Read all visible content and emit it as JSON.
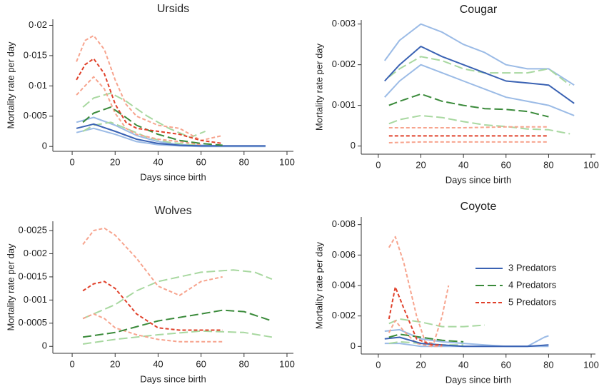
{
  "chart_data": [
    {
      "type": "line",
      "title": "Ursids",
      "x_label": "Days since birth",
      "y_label": "Mortality rate per day",
      "xlim": [
        -9,
        103
      ],
      "ylim": [
        -0.0008,
        0.021
      ],
      "xticks": [
        0,
        20,
        40,
        60,
        80,
        100
      ],
      "yticks": [
        0,
        {
          "value": 0.005,
          "label": "0·005"
        },
        {
          "value": 0.01,
          "label": "0·01"
        },
        {
          "value": 0.015,
          "label": "0·015"
        },
        {
          "value": 0.02,
          "label": "0·02"
        }
      ],
      "series": [
        {
          "color": "#9bbbe6",
          "dash": "solid",
          "x": [
            2,
            10,
            20,
            30,
            40,
            50,
            60,
            70,
            80,
            90
          ],
          "values": [
            0.004,
            0.0048,
            0.0035,
            0.0018,
            0.0008,
            0.0003,
            0.0002,
            0.0001,
            0.0001,
            0.0001
          ]
        },
        {
          "color": "#9bbbe6",
          "dash": "solid",
          "x": [
            2,
            10,
            20,
            30,
            40,
            50,
            60,
            70,
            80,
            90
          ],
          "values": [
            0.0023,
            0.003,
            0.002,
            0.0008,
            0.0003,
            0.0001,
            0,
            0,
            0,
            0
          ]
        },
        {
          "color": "#a8d8a0",
          "dash": "long",
          "x": [
            5,
            10,
            18,
            25,
            35,
            45,
            55,
            62
          ],
          "values": [
            0.0065,
            0.008,
            0.0088,
            0.0075,
            0.005,
            0.003,
            0.0015,
            0.0025
          ]
        },
        {
          "color": "#a8d8a0",
          "dash": "long",
          "x": [
            5,
            10,
            18,
            25,
            35,
            45,
            55,
            60
          ],
          "values": [
            0.0025,
            0.0035,
            0.004,
            0.003,
            0.0015,
            0.0007,
            0.0003,
            0.0002
          ]
        },
        {
          "color": "#f7a48e",
          "dash": "short",
          "x": [
            2,
            6,
            10,
            15,
            20,
            25,
            30,
            40,
            50,
            60,
            70
          ],
          "values": [
            0.014,
            0.0175,
            0.0183,
            0.016,
            0.011,
            0.007,
            0.005,
            0.0035,
            0.003,
            0.001,
            0.0018
          ]
        },
        {
          "color": "#f7a48e",
          "dash": "short",
          "x": [
            2,
            6,
            10,
            15,
            20,
            25,
            30,
            40,
            50,
            60
          ],
          "values": [
            0.0085,
            0.01,
            0.0115,
            0.0095,
            0.0055,
            0.003,
            0.002,
            0.0012,
            0.0008,
            0.0003
          ]
        },
        {
          "color": "#3a62b3",
          "dash": "solid",
          "x": [
            2,
            10,
            20,
            30,
            40,
            50,
            60,
            70,
            80,
            90
          ],
          "values": [
            0.003,
            0.0037,
            0.0025,
            0.0012,
            0.0005,
            0.0002,
            0.0001,
            0.0001,
            0.0001,
            0.0001
          ]
        },
        {
          "color": "#3a8a3a",
          "dash": "long",
          "x": [
            5,
            10,
            18,
            25,
            30,
            40,
            50,
            60,
            70
          ],
          "values": [
            0.004,
            0.0055,
            0.0065,
            0.0048,
            0.0035,
            0.002,
            0.001,
            0.0005,
            0.0002
          ]
        },
        {
          "color": "#e0402a",
          "dash": "short",
          "x": [
            2,
            6,
            10,
            15,
            20,
            25,
            30,
            40,
            50,
            60,
            70
          ],
          "values": [
            0.011,
            0.0135,
            0.0145,
            0.012,
            0.007,
            0.004,
            0.003,
            0.0025,
            0.002,
            0.001,
            0.0005
          ]
        }
      ]
    },
    {
      "type": "line",
      "title": "Cougar",
      "x_label": "Days since birth",
      "y_label": "Mortality rate per day",
      "xlim": [
        -8,
        102
      ],
      "ylim": [
        -0.0002,
        0.0031
      ],
      "xticks": [
        0,
        20,
        40,
        60,
        80,
        100
      ],
      "yticks": [
        0,
        {
          "value": 0.001,
          "label": "0·001"
        },
        {
          "value": 0.002,
          "label": "0·002"
        },
        {
          "value": 0.003,
          "label": "0·003"
        }
      ],
      "series": [
        {
          "color": "#9bbbe6",
          "dash": "solid",
          "x": [
            3,
            10,
            20,
            30,
            40,
            50,
            60,
            70,
            80,
            92
          ],
          "values": [
            0.0021,
            0.0026,
            0.003,
            0.0028,
            0.0025,
            0.0023,
            0.002,
            0.0019,
            0.0019,
            0.0015
          ]
        },
        {
          "color": "#9bbbe6",
          "dash": "solid",
          "x": [
            3,
            10,
            20,
            30,
            40,
            50,
            60,
            70,
            80,
            92
          ],
          "values": [
            0.0012,
            0.0016,
            0.002,
            0.0018,
            0.0016,
            0.0014,
            0.0012,
            0.0011,
            0.001,
            0.00075
          ]
        },
        {
          "color": "#a8d8a0",
          "dash": "long",
          "x": [
            5,
            10,
            20,
            30,
            40,
            50,
            60,
            70,
            80,
            90
          ],
          "values": [
            0.0017,
            0.0019,
            0.0022,
            0.0021,
            0.0019,
            0.0018,
            0.0018,
            0.0018,
            0.0019,
            0.0015
          ]
        },
        {
          "color": "#a8d8a0",
          "dash": "long",
          "x": [
            5,
            10,
            20,
            30,
            40,
            50,
            60,
            70,
            80,
            90
          ],
          "values": [
            0.00055,
            0.00065,
            0.00075,
            0.0007,
            0.0006,
            0.00052,
            0.00048,
            0.00042,
            0.0004,
            0.0003
          ]
        },
        {
          "color": "#f7a48e",
          "dash": "short",
          "x": [
            5,
            20,
            40,
            60,
            80
          ],
          "values": [
            0.00045,
            0.00045,
            0.00045,
            0.00047,
            0.00047
          ]
        },
        {
          "color": "#f7a48e",
          "dash": "short",
          "x": [
            5,
            20,
            40,
            60,
            80
          ],
          "values": [
            8e-05,
            0.0001,
            0.0001,
            0.0001,
            0.0001
          ]
        },
        {
          "color": "#3a62b3",
          "dash": "solid",
          "x": [
            3,
            10,
            20,
            30,
            40,
            50,
            60,
            70,
            80,
            92
          ],
          "values": [
            0.0016,
            0.002,
            0.00245,
            0.0022,
            0.002,
            0.0018,
            0.0016,
            0.00155,
            0.0015,
            0.00105
          ]
        },
        {
          "color": "#3a8a3a",
          "dash": "long",
          "x": [
            5,
            10,
            20,
            30,
            40,
            50,
            60,
            70,
            80
          ],
          "values": [
            0.001,
            0.0011,
            0.00128,
            0.0011,
            0.001,
            0.00092,
            0.0009,
            0.00085,
            0.00072
          ]
        },
        {
          "color": "#e0402a",
          "dash": "short",
          "x": [
            5,
            20,
            40,
            60,
            80
          ],
          "values": [
            0.00025,
            0.00025,
            0.00025,
            0.00025,
            0.00025
          ]
        }
      ]
    },
    {
      "type": "line",
      "title": "Wolves",
      "x_label": "Days since birth",
      "y_label": "Mortality rate per day",
      "xlim": [
        -9,
        103
      ],
      "ylim": [
        -0.00015,
        0.0027
      ],
      "xticks": [
        0,
        20,
        40,
        60,
        80,
        100
      ],
      "yticks": [
        0,
        {
          "value": 0.0005,
          "label": "0·0005"
        },
        {
          "value": 0.001,
          "label": "0·001"
        },
        {
          "value": 0.0015,
          "label": "0·0015"
        },
        {
          "value": 0.002,
          "label": "0·002"
        },
        {
          "value": 0.0025,
          "label": "0·0025"
        }
      ],
      "series": [
        {
          "color": "#a8d8a0",
          "dash": "long",
          "x": [
            5,
            20,
            30,
            40,
            60,
            75,
            85,
            93
          ],
          "values": [
            0.0006,
            0.0009,
            0.0012,
            0.0014,
            0.0016,
            0.00165,
            0.0016,
            0.00145
          ]
        },
        {
          "color": "#a8d8a0",
          "dash": "long",
          "x": [
            5,
            20,
            40,
            60,
            80,
            93
          ],
          "values": [
            5e-05,
            0.00015,
            0.00025,
            0.00033,
            0.0003,
            0.0002
          ]
        },
        {
          "color": "#f7a48e",
          "dash": "short",
          "x": [
            5,
            10,
            15,
            20,
            30,
            40,
            50,
            60,
            70
          ],
          "values": [
            0.0022,
            0.0025,
            0.00255,
            0.0024,
            0.0019,
            0.0013,
            0.0011,
            0.0014,
            0.0015
          ]
        },
        {
          "color": "#f7a48e",
          "dash": "short",
          "x": [
            5,
            10,
            15,
            20,
            30,
            40,
            50,
            60,
            70
          ],
          "values": [
            0.0006,
            0.0007,
            0.0006,
            0.0004,
            0.00025,
            0.00015,
            0.0001,
            0.0001,
            0.0001
          ]
        },
        {
          "color": "#3a8a3a",
          "dash": "long",
          "x": [
            5,
            20,
            40,
            60,
            70,
            80,
            93
          ],
          "values": [
            0.0002,
            0.0003,
            0.00055,
            0.0007,
            0.00078,
            0.00075,
            0.00055
          ]
        },
        {
          "color": "#e0402a",
          "dash": "short",
          "x": [
            5,
            10,
            15,
            20,
            30,
            40,
            50,
            60,
            70
          ],
          "values": [
            0.0012,
            0.00135,
            0.0014,
            0.00125,
            0.0007,
            0.0004,
            0.00035,
            0.00035,
            0.00035
          ]
        }
      ]
    },
    {
      "type": "line",
      "title": "Coyote",
      "x_label": "Days since birth",
      "y_label": "Mortality rate per day",
      "xlim": [
        -8,
        102
      ],
      "ylim": [
        -0.0005,
        0.0085
      ],
      "legend": "right",
      "xticks": [
        0,
        20,
        40,
        60,
        80,
        100
      ],
      "yticks": [
        0,
        {
          "value": 0.002,
          "label": "0·002"
        },
        {
          "value": 0.004,
          "label": "0·004"
        },
        {
          "value": 0.006,
          "label": "0·006"
        },
        {
          "value": 0.008,
          "label": "0·008"
        }
      ],
      "series": [
        {
          "color": "#9bbbe6",
          "dash": "solid",
          "x": [
            3,
            10,
            20,
            30,
            40,
            50,
            60,
            70,
            78,
            80
          ],
          "values": [
            0.001,
            0.0011,
            0.0005,
            0.0003,
            0.0002,
            0.0001,
            0,
            0,
            0.0006,
            0.0007
          ]
        },
        {
          "color": "#9bbbe6",
          "dash": "solid",
          "x": [
            3,
            10,
            20,
            30,
            40,
            50,
            60,
            70,
            80
          ],
          "values": [
            0.0002,
            0.0002,
            0,
            0,
            0,
            0,
            0,
            0,
            0
          ]
        },
        {
          "color": "#a8d8a0",
          "dash": "long",
          "x": [
            5,
            10,
            20,
            30,
            40,
            50
          ],
          "values": [
            0.0015,
            0.0018,
            0.0016,
            0.0013,
            0.0013,
            0.0014
          ]
        },
        {
          "color": "#a8d8a0",
          "dash": "long",
          "x": [
            5,
            10,
            20,
            30,
            40
          ],
          "values": [
            0.0002,
            0.0003,
            0.0002,
            0.0001,
            0.0001
          ]
        },
        {
          "color": "#f7a48e",
          "dash": "short",
          "x": [
            5,
            8,
            12,
            18,
            22,
            26,
            30,
            33
          ],
          "values": [
            0.0065,
            0.0072,
            0.0055,
            0.002,
            0.0003,
            0.0002,
            0.002,
            0.004
          ]
        },
        {
          "color": "#f7a48e",
          "dash": "short",
          "x": [
            5,
            8,
            12,
            18,
            25,
            30
          ],
          "values": [
            0.0009,
            0.0017,
            0.001,
            0.0002,
            0,
            0
          ]
        },
        {
          "name": "3 Predators",
          "color": "#3a62b3",
          "dash": "solid",
          "x": [
            3,
            10,
            20,
            30,
            40,
            50,
            60,
            70,
            80
          ],
          "values": [
            0.0005,
            0.0006,
            0.0002,
            0.0001,
            0,
            0,
            0,
            0,
            0.0001
          ]
        },
        {
          "name": "4 Predators",
          "color": "#3a8a3a",
          "dash": "long",
          "x": [
            5,
            10,
            20,
            30,
            40
          ],
          "values": [
            0.0006,
            0.0008,
            0.0006,
            0.0004,
            0.0003
          ]
        },
        {
          "name": "5 Predators",
          "color": "#e0402a",
          "dash": "short",
          "x": [
            5,
            8,
            12,
            18,
            25,
            30
          ],
          "values": [
            0.0018,
            0.0039,
            0.0025,
            0.0005,
            0.0001,
            0.0001
          ]
        }
      ]
    }
  ]
}
